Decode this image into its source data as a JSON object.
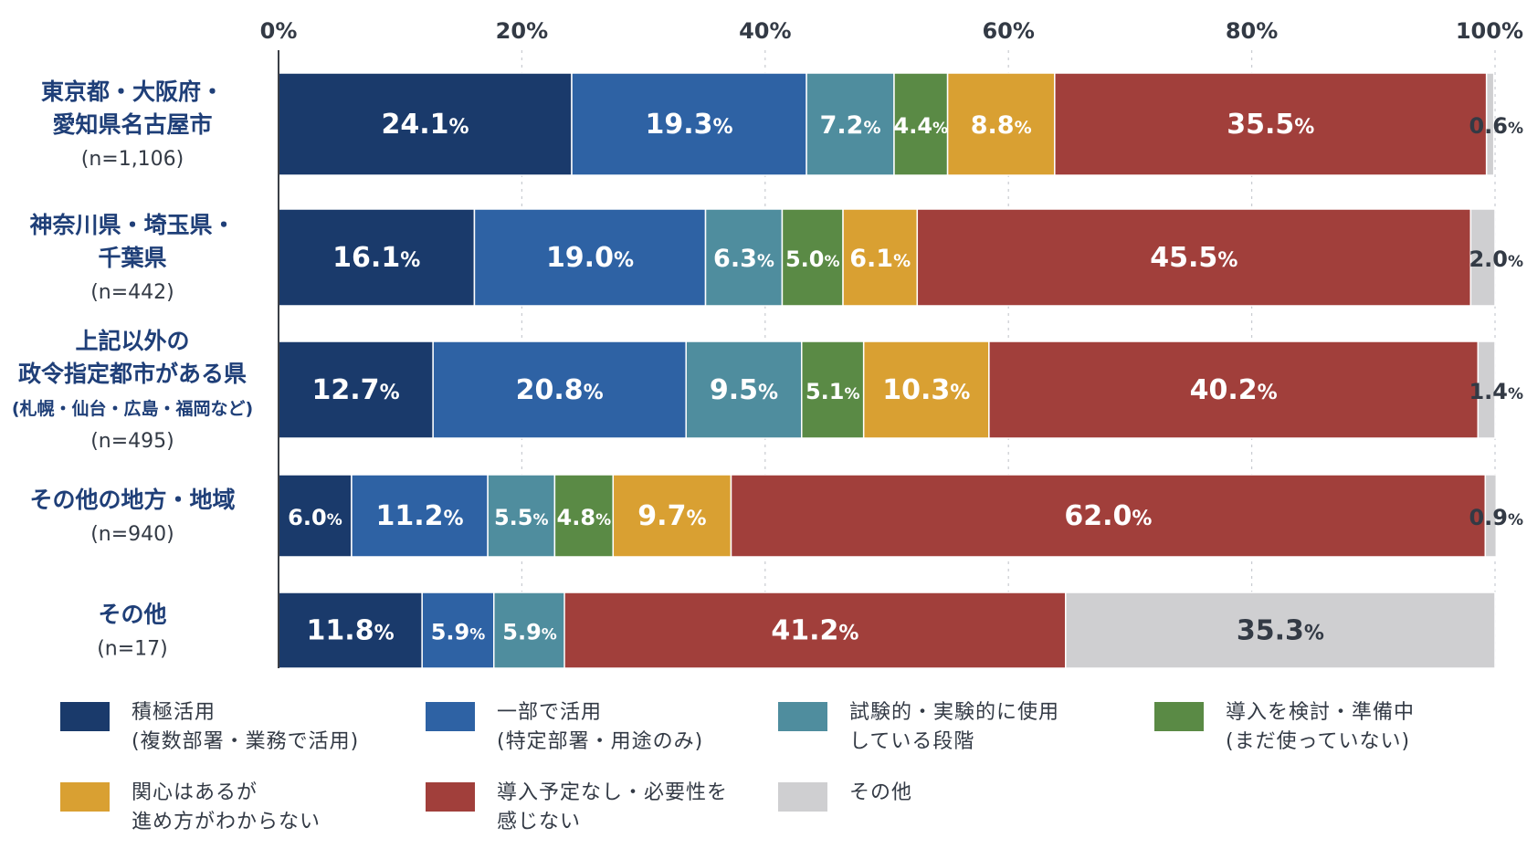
{
  "chart_data": {
    "type": "bar",
    "orientation": "horizontal",
    "stacked": true,
    "xlim": [
      0,
      100
    ],
    "x_ticks": [
      "0%",
      "20%",
      "40%",
      "60%",
      "80%",
      "100%"
    ],
    "grid": true,
    "legend_position": "bottom",
    "categories": [
      {
        "lines": [
          "東京都・大阪府・",
          "愛知県名古屋市"
        ],
        "n": "(n=1,106)"
      },
      {
        "lines": [
          "神奈川県・埼玉県・",
          "千葉県"
        ],
        "n": "(n=442)"
      },
      {
        "lines": [
          "上記以外の",
          "政令指定都市がある県"
        ],
        "note": "(札幌・仙台・広島・福岡など)",
        "n": "(n=495)"
      },
      {
        "lines": [
          "その他の地方・地域"
        ],
        "n": "(n=940)"
      },
      {
        "lines": [
          "その他"
        ],
        "n": "(n=17)"
      }
    ],
    "series": [
      {
        "name": "積極活用\n(複数部署・業務で活用)",
        "color": "#1a3a6b",
        "values": [
          24.1,
          16.1,
          12.7,
          6.0,
          11.8
        ],
        "labels": [
          "24.1",
          "16.1",
          "12.7",
          "6.0",
          "11.8"
        ]
      },
      {
        "name": "一部で活用\n(特定部署・用途のみ)",
        "color": "#2e62a4",
        "values": [
          19.3,
          19.0,
          20.8,
          11.2,
          5.9
        ],
        "labels": [
          "19.3",
          "19.0",
          "20.8",
          "11.2",
          "5.9"
        ]
      },
      {
        "name": "試験的・実験的に使用\nしている段階",
        "color": "#4f8d9e",
        "values": [
          7.2,
          6.3,
          9.5,
          5.5,
          5.9
        ],
        "labels": [
          "7.2",
          "6.3",
          "9.5",
          "5.5",
          "5.9"
        ]
      },
      {
        "name": "導入を検討・準備中\n(まだ使っていない)",
        "color": "#5a8a45",
        "values": [
          4.4,
          5.0,
          5.1,
          4.8,
          0.0
        ],
        "labels": [
          "4.4",
          "5.0",
          "5.1",
          "4.8",
          "0.0"
        ]
      },
      {
        "name": "関心はあるが\n進め方がわからない",
        "color": "#d9a032",
        "values": [
          8.8,
          6.1,
          10.3,
          9.7,
          0.0
        ],
        "labels": [
          "8.8",
          "6.1",
          "10.3",
          "9.7",
          "0.0"
        ]
      },
      {
        "name": "導入予定なし・必要性を\n感じない",
        "color": "#a13f3b",
        "values": [
          35.5,
          45.5,
          40.2,
          62.0,
          41.2
        ],
        "labels": [
          "35.5",
          "45.5",
          "40.2",
          "62.0",
          "41.2"
        ]
      },
      {
        "name": "その他",
        "color": "#cfcfd1",
        "values": [
          0.6,
          2.0,
          1.4,
          0.9,
          35.3
        ],
        "labels": [
          "0.6",
          "2.0",
          "1.4",
          "0.9",
          "35.3"
        ]
      }
    ],
    "percent_suffix": "%"
  },
  "colors": {
    "category_label": "#1f3f78",
    "n_label": "#333a45",
    "axis_tick": "#333a45",
    "inside_label": "#ffffff",
    "outside_label": "#333a45"
  }
}
